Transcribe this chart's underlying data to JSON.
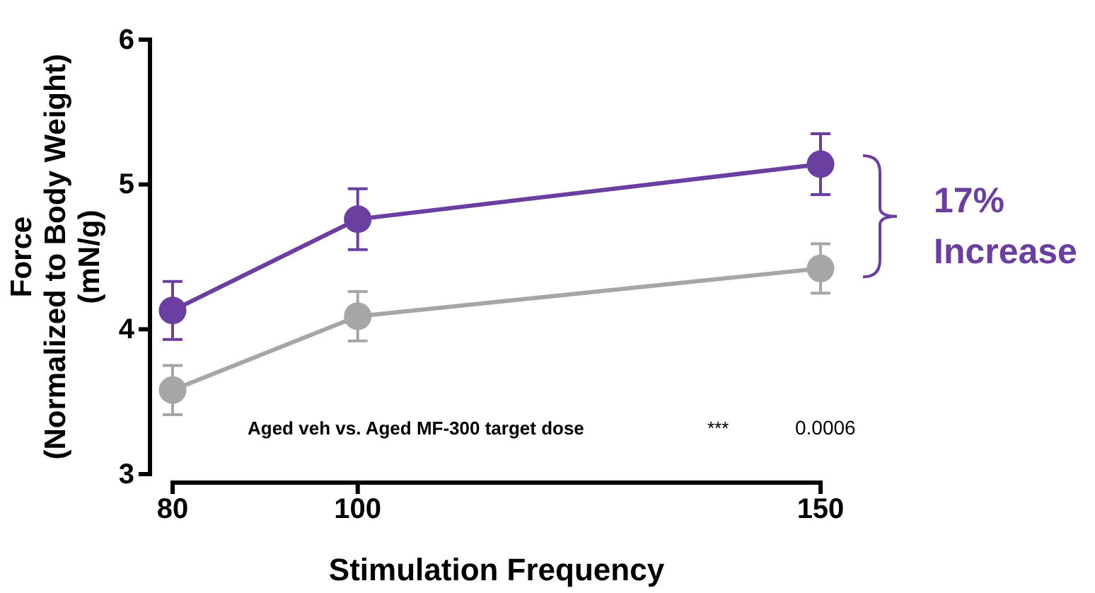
{
  "chart_data": {
    "type": "line",
    "xlabel": "Stimulation Frequency",
    "ylabel": "Force\n(Normalized to Body Weight)\n(mN/g)",
    "x": [
      80,
      100,
      150
    ],
    "series": [
      {
        "color": "#6b3fa0",
        "values": [
          4.13,
          4.76,
          5.14
        ],
        "errors": [
          0.2,
          0.21,
          0.21
        ]
      },
      {
        "color": "#a6a6a6",
        "values": [
          3.58,
          4.09,
          4.42
        ],
        "errors": [
          0.17,
          0.17,
          0.17
        ]
      }
    ],
    "xlim": [
      80,
      150
    ],
    "xticks": [
      80,
      100,
      150
    ],
    "ylim": [
      3,
      6
    ],
    "yticks": [
      3,
      4,
      5,
      6
    ],
    "marker": "circle",
    "line_style": "solid",
    "grid": false,
    "annotations": [
      "Aged veh vs. Aged MF-300 target dose",
      "***",
      "0.0006",
      "17%\nIncrease"
    ]
  }
}
